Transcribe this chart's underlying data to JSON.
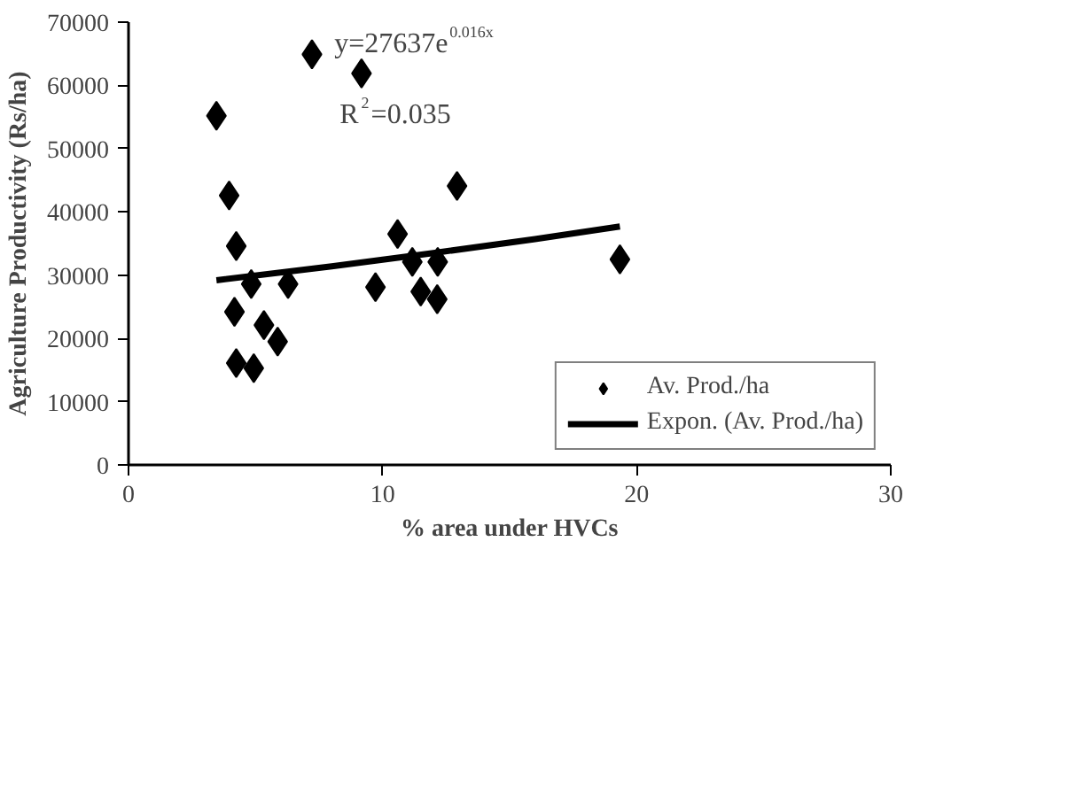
{
  "chart_data": {
    "type": "scatter",
    "xlabel": "% area under HVCs",
    "ylabel": "Agriculture Productivity (Rs/ha)",
    "xlim": [
      0,
      30
    ],
    "xticks": [
      0,
      10,
      20,
      30
    ],
    "ylim": [
      0,
      70000
    ],
    "yticks": [
      0,
      10000,
      20000,
      30000,
      40000,
      50000,
      60000,
      70000
    ],
    "grid": false,
    "legend": "bottom right",
    "annotations": [
      "y=27637e$^{0.016x}$",
      "R$^{2}$=0.035"
    ],
    "series": [
      {
        "name": "Av. Prod./ha",
        "color": "#000000",
        "marker": "diamond",
        "x": [
          3.46,
          7.22,
          9.17,
          3.96,
          4.24,
          4.83,
          6.28,
          4.17,
          5.33,
          5.87,
          4.24,
          4.93,
          9.72,
          10.59,
          11.17,
          11.5,
          12.17,
          12.15,
          12.93,
          19.34
        ],
        "values": [
          55200,
          64900,
          61900,
          42600,
          34600,
          28600,
          28600,
          24200,
          22100,
          19500,
          16100,
          15300,
          28100,
          36500,
          32100,
          27400,
          32100,
          26200,
          44100,
          32500
        ]
      },
      {
        "name": "Expon. (Av. Prod./ha)",
        "color": "#000000",
        "type": "line",
        "line_style": "solid",
        "x": [
          3.46,
          8,
          12,
          16,
          19.34
        ],
        "values": [
          29200,
          31400,
          33500,
          35700,
          37700
        ]
      }
    ]
  }
}
